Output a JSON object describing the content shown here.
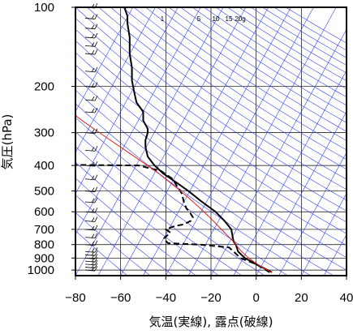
{
  "chart_data": {
    "type": "line",
    "title": "",
    "xlabel": "気温(実線), 露点(破線)",
    "ylabel": "気圧(hPa)",
    "xlim": [
      -80,
      40
    ],
    "ylim": [
      1050,
      100
    ],
    "yscale": "log",
    "x_ticks": [
      "−80",
      "−60",
      "−40",
      "−20",
      "0",
      "20",
      "40"
    ],
    "x_tick_values": [
      -80,
      -60,
      -40,
      -20,
      0,
      20,
      40
    ],
    "y_ticks": [
      "100",
      "200",
      "300",
      "400",
      "500",
      "600",
      "700",
      "800",
      "900",
      "1000"
    ],
    "y_tick_values": [
      100,
      200,
      300,
      400,
      500,
      600,
      700,
      800,
      900,
      1000
    ],
    "grid": true,
    "mixing_ratio_labels": [
      "1",
      "5",
      "10",
      "15",
      "20g"
    ],
    "mixing_ratio_label_values": [
      1,
      5,
      10,
      15,
      20
    ],
    "series": [
      {
        "style": "solid",
        "color": "#000000",
        "points": [
          [
            7,
            1020
          ],
          [
            0,
            950
          ],
          [
            -5,
            900
          ],
          [
            -8,
            850
          ],
          [
            -9,
            800
          ],
          [
            -10,
            780
          ],
          [
            -11,
            700
          ],
          [
            -14,
            650
          ],
          [
            -18,
            600
          ],
          [
            -24,
            550
          ],
          [
            -30,
            500
          ],
          [
            -36,
            460
          ],
          [
            -41,
            430
          ],
          [
            -45,
            400
          ],
          [
            -48,
            370
          ],
          [
            -49,
            340
          ],
          [
            -49,
            320
          ],
          [
            -48,
            300
          ],
          [
            -48,
            290
          ],
          [
            -50,
            270
          ],
          [
            -50,
            250
          ],
          [
            -53,
            230
          ],
          [
            -54,
            210
          ],
          [
            -55,
            190
          ],
          [
            -55,
            170
          ],
          [
            -56,
            150
          ],
          [
            -56,
            130
          ],
          [
            -57,
            115
          ],
          [
            -57,
            108
          ],
          [
            -58,
            102
          ],
          [
            -58,
            100
          ]
        ]
      },
      {
        "style": "dashed",
        "color": "#000000",
        "points": [
          [
            6,
            1020
          ],
          [
            0,
            950
          ],
          [
            -7,
            900
          ],
          [
            -10,
            850
          ],
          [
            -12,
            820
          ],
          [
            -25,
            800
          ],
          [
            -39,
            790
          ],
          [
            -41,
            760
          ],
          [
            -38,
            720
          ],
          [
            -40,
            700
          ],
          [
            -36,
            680
          ],
          [
            -32,
            670
          ],
          [
            -29,
            650
          ],
          [
            -28,
            630
          ],
          [
            -29,
            610
          ],
          [
            -31,
            580
          ],
          [
            -32,
            550
          ],
          [
            -33,
            510
          ],
          [
            -35,
            480
          ],
          [
            -37,
            450
          ],
          [
            -42,
            420
          ],
          [
            -52,
            400
          ],
          [
            -80,
            398
          ]
        ]
      },
      {
        "style": "solid",
        "color": "#dd2222",
        "points": [
          [
            7,
            1020
          ],
          [
            3,
            980
          ],
          [
            -1,
            930
          ],
          [
            -4,
            890
          ],
          [
            -7,
            840
          ],
          [
            -9,
            800
          ],
          [
            -10,
            780
          ],
          [
            -14,
            720
          ],
          [
            -19,
            650
          ],
          [
            -24,
            590
          ],
          [
            -30,
            530
          ],
          [
            -36,
            480
          ],
          [
            -43,
            430
          ],
          [
            -50,
            390
          ],
          [
            -58,
            350
          ],
          [
            -67,
            310
          ],
          [
            -77,
            270
          ],
          [
            -80,
            258
          ]
        ]
      }
    ],
    "wind_barb_levels": [
      1000,
      975,
      950,
      925,
      900,
      875,
      850,
      800,
      750,
      700,
      650,
      600,
      550,
      500,
      450,
      400,
      350,
      300,
      250,
      225,
      200,
      175,
      150,
      140,
      130,
      120,
      110,
      100
    ]
  }
}
